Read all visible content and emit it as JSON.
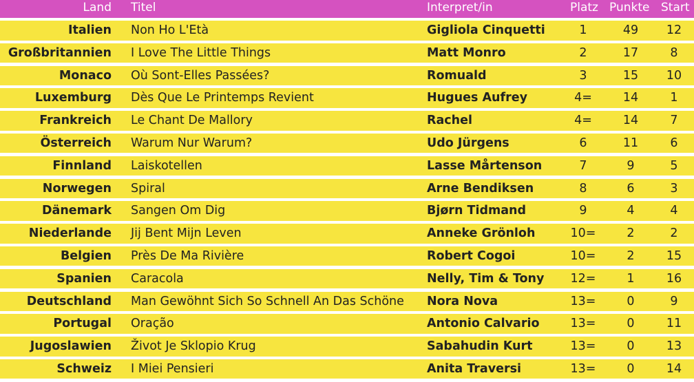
{
  "columns": {
    "land": "Land",
    "titel": "Titel",
    "interpret": "Interpret/in",
    "platz": "Platz",
    "punkte": "Punkte",
    "start": "Start"
  },
  "rows": [
    {
      "land": "Italien",
      "titel": "Non Ho L'Età",
      "interpret": "Gigliola Cinquetti",
      "platz": "1",
      "punkte": "49",
      "start": "12"
    },
    {
      "land": "Großbritannien",
      "titel": "I Love The Little Things",
      "interpret": "Matt Monro",
      "platz": "2",
      "punkte": "17",
      "start": "8"
    },
    {
      "land": "Monaco",
      "titel": "Où Sont-Elles Passées?",
      "interpret": "Romuald",
      "platz": "3",
      "punkte": "15",
      "start": "10"
    },
    {
      "land": "Luxemburg",
      "titel": "Dès Que Le Printemps Revient",
      "interpret": "Hugues Aufrey",
      "platz": "4=",
      "punkte": "14",
      "start": "1"
    },
    {
      "land": "Frankreich",
      "titel": "Le Chant De Mallory",
      "interpret": "Rachel",
      "platz": "4=",
      "punkte": "14",
      "start": "7"
    },
    {
      "land": "Österreich",
      "titel": "Warum Nur Warum?",
      "interpret": "Udo Jürgens",
      "platz": "6",
      "punkte": "11",
      "start": "6"
    },
    {
      "land": "Finnland",
      "titel": "Laiskotellen",
      "interpret": "Lasse Mårtenson",
      "platz": "7",
      "punkte": "9",
      "start": "5"
    },
    {
      "land": "Norwegen",
      "titel": "Spiral",
      "interpret": "Arne Bendiksen",
      "platz": "8",
      "punkte": "6",
      "start": "3"
    },
    {
      "land": "Dänemark",
      "titel": "Sangen Om Dig",
      "interpret": "Bjørn Tidmand",
      "platz": "9",
      "punkte": "4",
      "start": "4"
    },
    {
      "land": "Niederlande",
      "titel": "Jij Bent Mijn Leven",
      "interpret": "Anneke Grönloh",
      "platz": "10=",
      "punkte": "2",
      "start": "2"
    },
    {
      "land": "Belgien",
      "titel": "Près De Ma Rivière",
      "interpret": "Robert Cogoi",
      "platz": "10=",
      "punkte": "2",
      "start": "15"
    },
    {
      "land": "Spanien",
      "titel": "Caracola",
      "interpret": "Nelly, Tim & Tony",
      "platz": "12=",
      "punkte": "1",
      "start": "16"
    },
    {
      "land": "Deutschland",
      "titel": "Man Gewöhnt Sich So Schnell An Das Schöne",
      "interpret": "Nora Nova",
      "platz": "13=",
      "punkte": "0",
      "start": "9"
    },
    {
      "land": "Portugal",
      "titel": "Oração",
      "interpret": "Antonio Calvario",
      "platz": "13=",
      "punkte": "0",
      "start": "11"
    },
    {
      "land": "Jugoslawien",
      "titel": "Život Je Sklopio Krug",
      "interpret": "Sabahudin Kurt",
      "platz": "13=",
      "punkte": "0",
      "start": "13"
    },
    {
      "land": "Schweiz",
      "titel": "I Miei Pensieri",
      "interpret": "Anita Traversi",
      "platz": "13=",
      "punkte": "0",
      "start": "14"
    }
  ],
  "colors": {
    "header_bg": "#d552c0",
    "row_bg": "#f7e53f",
    "text": "#222222"
  }
}
